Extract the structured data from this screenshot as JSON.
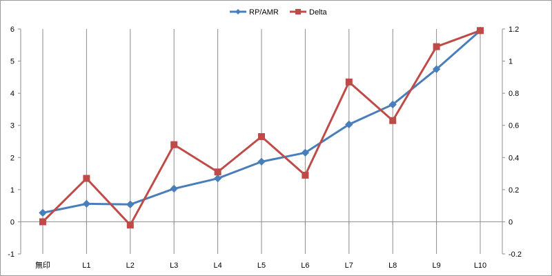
{
  "chart_data": {
    "type": "line",
    "categories": [
      "無印",
      "L1",
      "L2",
      "L3",
      "L4",
      "L5",
      "L6",
      "L7",
      "L8",
      "L9",
      "L10"
    ],
    "series": [
      {
        "name": "RP/AMR",
        "axis": "left",
        "color": "#4a7ebb",
        "marker": "diamond",
        "values": [
          0.28,
          0.56,
          0.54,
          1.03,
          1.35,
          1.87,
          2.15,
          3.03,
          3.65,
          4.75,
          5.95
        ]
      },
      {
        "name": "Delta",
        "axis": "right",
        "color": "#be4b48",
        "marker": "square",
        "values": [
          0.0,
          0.27,
          -0.02,
          0.48,
          0.31,
          0.53,
          0.29,
          0.87,
          0.63,
          1.09,
          1.19
        ]
      }
    ],
    "y_left": {
      "min": -1,
      "max": 6,
      "ticks": [
        "-1",
        "0",
        "1",
        "2",
        "3",
        "4",
        "5",
        "6"
      ]
    },
    "y_right": {
      "min": -0.2,
      "max": 1.2,
      "ticks": [
        "-0.2",
        "0",
        "0.2",
        "0.4",
        "0.6",
        "0.8",
        "1",
        "1.2"
      ]
    },
    "grid": "vertical",
    "legend": "top-center",
    "title": "",
    "xlabel": "",
    "ylabel": ""
  }
}
